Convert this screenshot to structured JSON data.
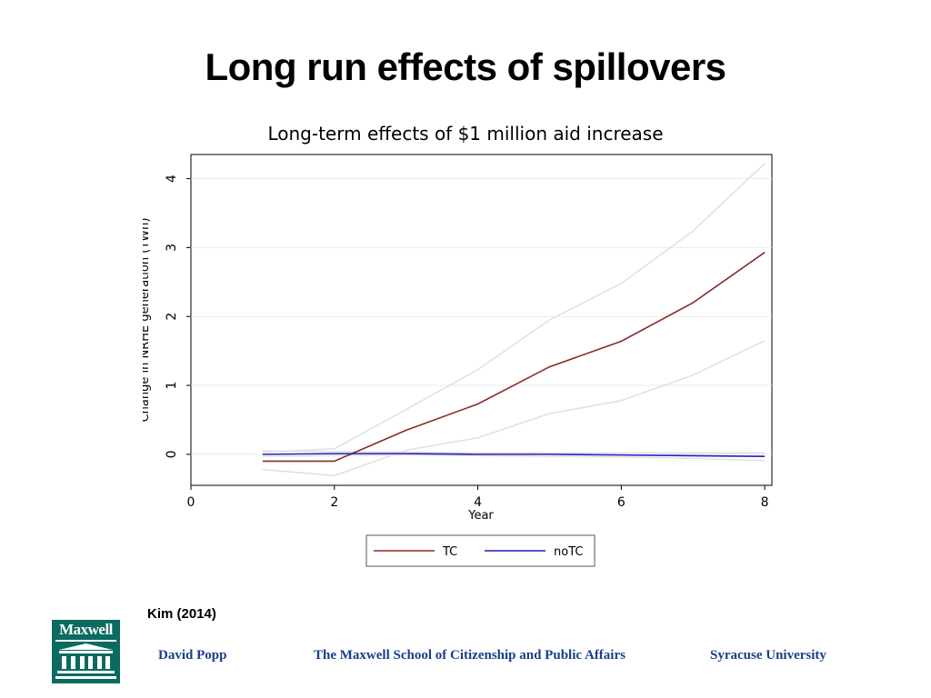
{
  "slide": {
    "title": "Long run effects of spillovers",
    "citation": "Kim (2014)"
  },
  "footer": {
    "author": "David Popp",
    "school": "The Maxwell School of Citizenship and Public Affairs",
    "university": "Syracuse University",
    "logo_text": "Maxwell",
    "logo_color": "#0b6b60",
    "text_color": "#1a3e8c"
  },
  "chart_data": {
    "type": "line",
    "title": "Long-term effects of $1 million aid increase",
    "xlabel": "Year",
    "ylabel": "Change in NRHE generation (TWh)",
    "xlim": [
      0,
      8.1
    ],
    "ylim": [
      -0.45,
      4.35
    ],
    "xticks": [
      0,
      2,
      4,
      6,
      8
    ],
    "yticks": [
      0,
      1,
      2,
      3,
      4
    ],
    "x": [
      1,
      2,
      3,
      4,
      5,
      6,
      7,
      8
    ],
    "series": [
      {
        "name": "TC",
        "color": "#8b2a2a",
        "values": [
          -0.1,
          -0.1,
          0.35,
          0.73,
          1.27,
          1.64,
          2.2,
          2.93
        ]
      },
      {
        "name": "noTC",
        "color": "#1f1fc4",
        "values": [
          0.0,
          0.01,
          0.01,
          0.0,
          0.0,
          -0.01,
          -0.02,
          -0.03
        ]
      }
    ],
    "confidence_bands": [
      {
        "series": "TC",
        "upper": [
          0.03,
          0.08,
          0.65,
          1.23,
          1.95,
          2.48,
          3.24,
          4.22
        ],
        "lower": [
          -0.22,
          -0.31,
          0.06,
          0.24,
          0.59,
          0.78,
          1.15,
          1.65
        ]
      },
      {
        "series": "noTC",
        "upper": [
          0.05,
          0.04,
          0.03,
          0.02,
          0.02,
          0.02,
          0.02,
          0.02
        ],
        "lower": [
          -0.03,
          -0.02,
          -0.01,
          -0.02,
          -0.03,
          -0.04,
          -0.06,
          -0.09
        ]
      }
    ],
    "band_color": "#e0e0e0",
    "grid": true,
    "legend": {
      "position": "bottom-center",
      "entries": [
        "TC",
        "noTC"
      ]
    }
  }
}
